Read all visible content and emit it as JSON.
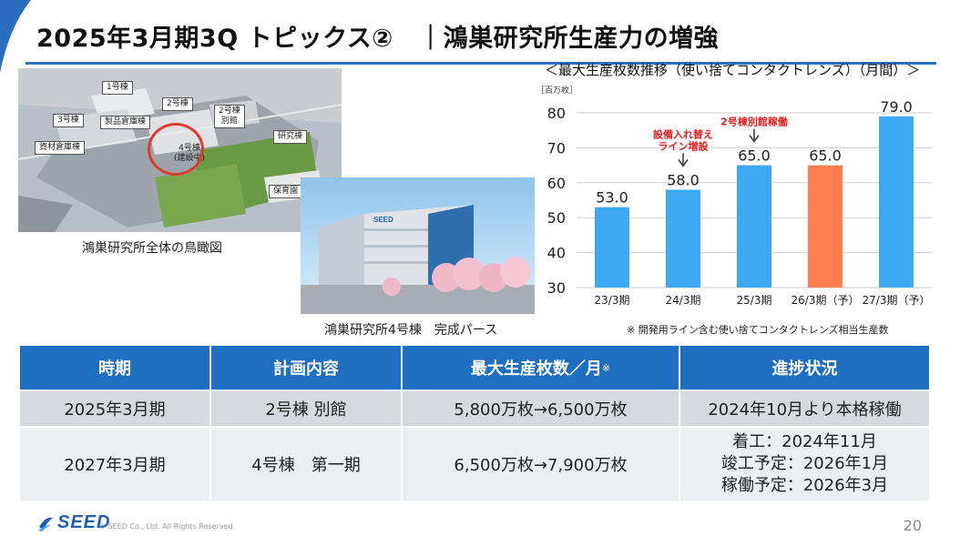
{
  "header": {
    "title": "2025年3月期3Q トピックス②　｜鴻巣研究所生産力の増強"
  },
  "aerial": {
    "caption": "鴻巣研究所全体の鳥瞰図",
    "tags": {
      "b1": "1号棟",
      "b2": "2号棟",
      "b2a": "2号棟\n別館",
      "b3": "3号棟",
      "warehouse": "製品倉庫棟",
      "materials": "資材倉庫棟",
      "b4": "4号棟\n(建設中)",
      "research": "研究棟",
      "nursery": "保育園"
    }
  },
  "render": {
    "caption": "鴻巣研究所4号棟　完成パース",
    "sign": "SEED"
  },
  "chart_data": {
    "type": "bar",
    "title": "＜最大生産枚数推移（使い捨てコンタクトレンズ）（月間）＞",
    "ylabel": "［百万枚］",
    "categories": [
      "23/3期",
      "24/3期",
      "25/3期",
      "26/3期（予）",
      "27/3期（予）"
    ],
    "values": [
      53.0,
      58.0,
      65.0,
      65.0,
      79.0
    ],
    "value_labels": [
      "53.0",
      "58.0",
      "65.0",
      "65.0",
      "79.0"
    ],
    "yticks": [
      "30",
      "40",
      "50",
      "60",
      "70",
      "80"
    ],
    "ylim": [
      30,
      80
    ],
    "colors": [
      "#3da9f5",
      "#3da9f5",
      "#3da9f5",
      "#ff7f50",
      "#3da9f5"
    ],
    "annotations": [
      {
        "text": "設備入れ替え\nライン増設",
        "category_index": 1
      },
      {
        "text": "2号棟別館稼働",
        "category_index": 2
      }
    ],
    "annotation_color": "#e02020",
    "note": "※ 開発用ライン含む使い捨てコンタクトレンズ相当生産数"
  },
  "table": {
    "headers": [
      "時期",
      "計画内容",
      "最大生産枚数／月",
      "進捗状況"
    ],
    "header_mark": "※",
    "rows": [
      {
        "period": "2025年3月期",
        "plan": "2号棟 別館",
        "capacity": "5,800万枚→6,500万枚",
        "status": [
          "2024年10月より本格稼働"
        ]
      },
      {
        "period": "2027年3月期",
        "plan": "4号棟　第一期",
        "capacity": "6,500万枚→7,900万枚",
        "status": [
          "着工：2024年11月",
          "竣工予定：2026年1月",
          "稼働予定：2026年3月"
        ]
      }
    ]
  },
  "footer": {
    "logo": "SEED",
    "copyright": "© SEED Co., Ltd. All Rights Reserved.",
    "page": "20"
  },
  "colors": {
    "accent": "#2a6ebf",
    "table_header": "#1f6ec2",
    "bar": "#3da9f5",
    "bar_highlight": "#ff7f50"
  }
}
